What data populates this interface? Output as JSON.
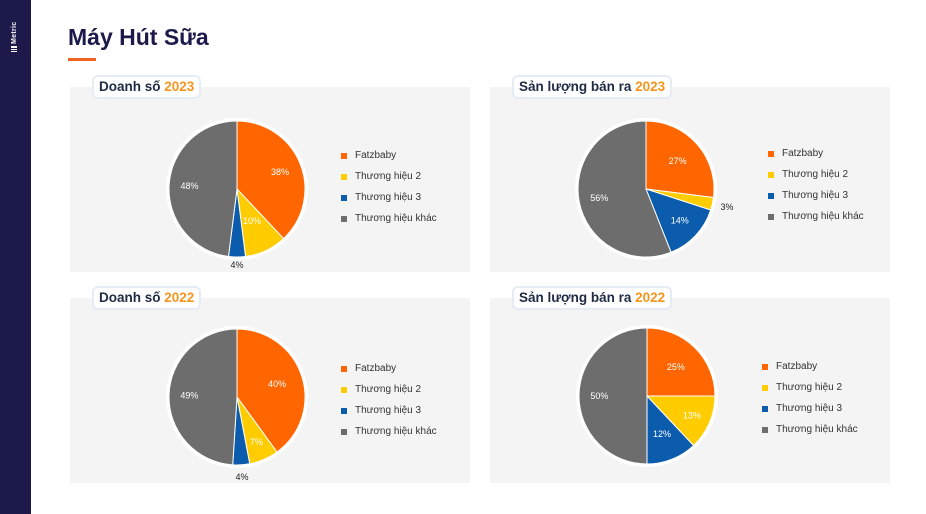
{
  "brand": "Metric",
  "page_title": "Máy Hút Sữa",
  "legend": [
    "Fatzbaby",
    "Thương hiệu 2",
    "Thương hiệu 3",
    "Thương hiệu khác"
  ],
  "colors": {
    "Fatzbaby": "#ff6600",
    "Thương hiệu 2": "#ffcc00",
    "Thương hiệu 3": "#0b5cad",
    "Thương hiệu khác": "#6d6d6d",
    "accent": "#f26322",
    "navy": "#1b1a4a",
    "year": "#f7941d"
  },
  "chart_data": [
    {
      "type": "pie",
      "title_prefix": "Doanh số",
      "title_year": "2023",
      "categories": [
        "Fatzbaby",
        "Thương hiệu 2",
        "Thương hiệu 3",
        "Thương hiệu khác"
      ],
      "values": [
        38,
        10,
        4,
        48
      ],
      "labels": [
        "38%",
        "10%",
        "4%",
        "48%"
      ]
    },
    {
      "type": "pie",
      "title_prefix": "Sản lượng bán ra",
      "title_year": "2023",
      "categories": [
        "Fatzbaby",
        "Thương hiệu 2",
        "Thương hiệu 3",
        "Thương hiệu khác"
      ],
      "values": [
        27,
        3,
        14,
        56
      ],
      "labels": [
        "27%",
        "3%",
        "14%",
        "56%"
      ]
    },
    {
      "type": "pie",
      "title_prefix": "Doanh số",
      "title_year": "2022",
      "categories": [
        "Fatzbaby",
        "Thương hiệu 2",
        "Thương hiệu 3",
        "Thương hiệu khác"
      ],
      "values": [
        40,
        7,
        4,
        49
      ],
      "labels": [
        "40%",
        "7%",
        "4%",
        "49%"
      ]
    },
    {
      "type": "pie",
      "title_prefix": "Sản lượng bán ra",
      "title_year": "2022",
      "categories": [
        "Fatzbaby",
        "Thương hiệu 2",
        "Thương hiệu 3",
        "Thương hiệu khác"
      ],
      "values": [
        25,
        13,
        12,
        50
      ],
      "labels": [
        "25%",
        "13%",
        "12%",
        "50%"
      ]
    }
  ]
}
